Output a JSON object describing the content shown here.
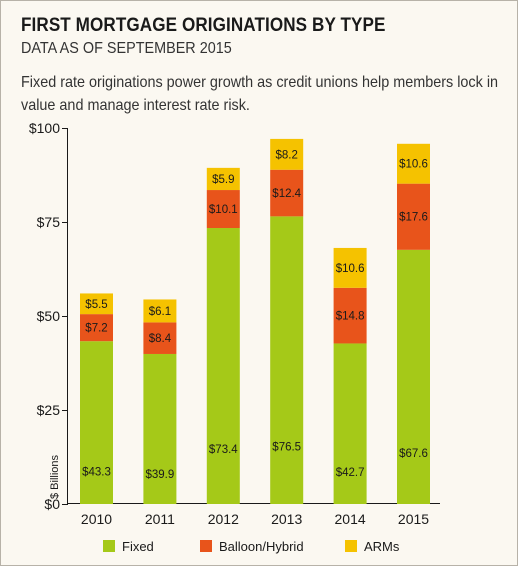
{
  "title": "FIRST MORTGAGE ORIGINATIONS BY TYPE",
  "subtitle": "DATA AS OF SEPTEMBER 2015",
  "description": "Fixed rate originations power growth as credit unions help members lock in value and manage interest rate risk.",
  "chart_data": {
    "type": "bar",
    "stacked": true,
    "categories": [
      "2010",
      "2011",
      "2012",
      "2013",
      "2014",
      "2015"
    ],
    "ylabel": "$ Billions",
    "ylim": [
      0,
      100
    ],
    "yticks": [
      0,
      25,
      50,
      75,
      100
    ],
    "ytick_labels": [
      "$0",
      "$25",
      "$50",
      "$75",
      "$100"
    ],
    "grid": false,
    "legend": "bottom",
    "series": [
      {
        "name": "Fixed",
        "color": "#a5c918",
        "values": [
          43.3,
          39.9,
          73.4,
          76.5,
          42.7,
          67.6
        ],
        "labels": [
          "$43.3",
          "$39.9",
          "$73.4",
          "$76.5",
          "$42.7",
          "$67.6"
        ]
      },
      {
        "name": "Balloon/Hybrid",
        "color": "#e8541b",
        "values": [
          7.2,
          8.4,
          10.1,
          12.4,
          14.8,
          17.6
        ],
        "labels": [
          "$7.2",
          "$8.4",
          "$10.1",
          "$12.4",
          "$14.8",
          "$17.6"
        ]
      },
      {
        "name": "ARMs",
        "color": "#f5c200",
        "values": [
          5.5,
          6.1,
          5.9,
          8.2,
          10.6,
          10.6
        ],
        "labels": [
          "$5.5",
          "$6.1",
          "$5.9",
          "$8.2",
          "$10.6",
          "$10.6"
        ]
      }
    ]
  }
}
